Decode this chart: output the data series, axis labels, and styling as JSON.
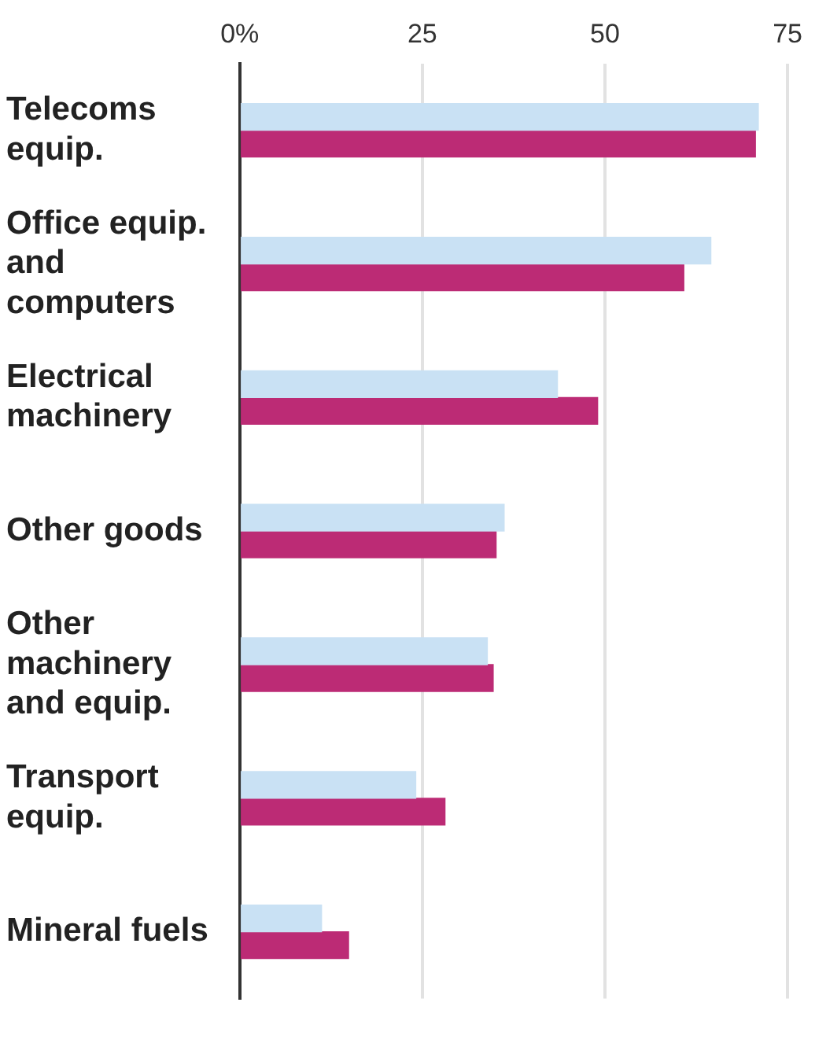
{
  "chart_data": {
    "type": "bar",
    "orientation": "horizontal",
    "categories": [
      "Telecoms equip.",
      "Office equip. and computers",
      "Electrical machinery",
      "Other goods",
      "Other machinery and equip.",
      "Transport equip.",
      "Mineral fuels"
    ],
    "series": [
      {
        "color": "#c9e1f4",
        "values": [
          71.0,
          64.5,
          43.5,
          36.2,
          33.9,
          24.1,
          11.2
        ]
      },
      {
        "color": "#bc2b75",
        "values": [
          70.6,
          60.8,
          49.0,
          35.1,
          34.7,
          28.1,
          14.9
        ]
      }
    ],
    "xlim": [
      0,
      75
    ],
    "xticks": [
      {
        "value": 0,
        "label": "0%"
      },
      25,
      50,
      75
    ],
    "grid": "x",
    "legend": false
  }
}
